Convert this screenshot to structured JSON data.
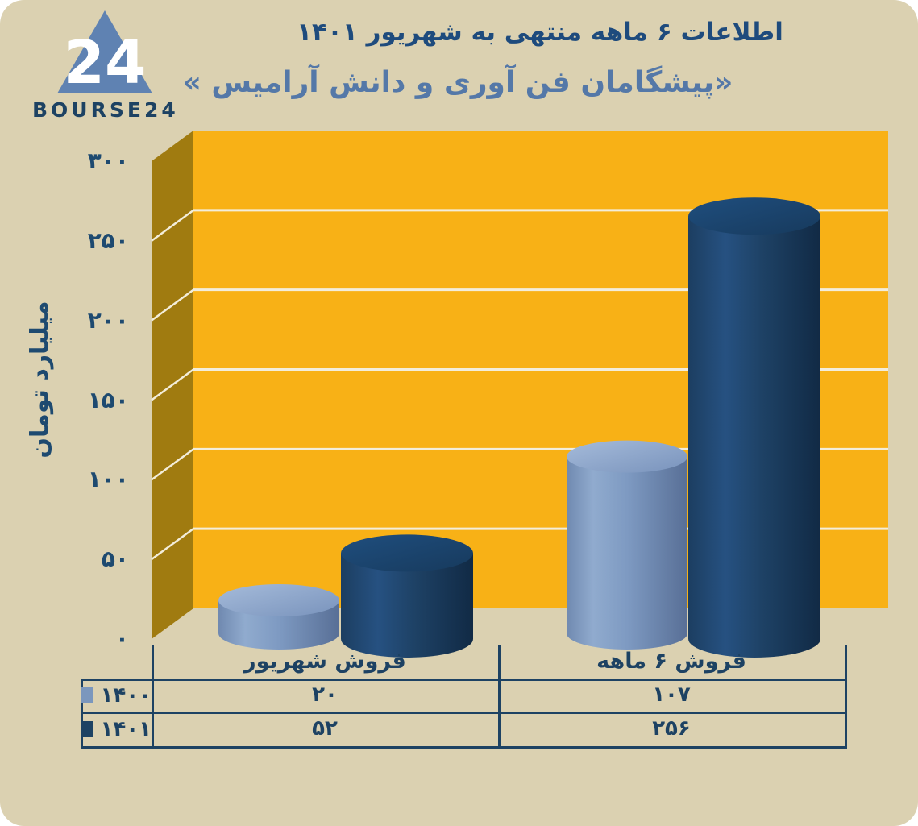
{
  "logo": {
    "text": "BOURSE24",
    "number": "24",
    "triangle_color": "#5f82b2"
  },
  "header": {
    "title": "اطلاعات ۶ ماهه منتهی به شهریور ۱۴۰۱",
    "subtitle": "«پیشگامان فن آوری و دانش آرامیس »"
  },
  "chart_data": {
    "type": "bar",
    "style": "3d-cylinder",
    "title": "اطلاعات ۶ ماهه منتهی به شهریور ۱۴۰۱",
    "subtitle": "«پیشگامان فن آوری و دانش آرامیس »",
    "ylabel": "میلیارد تومان",
    "ylim": [
      0,
      300
    ],
    "ytick_step": 50,
    "grid": true,
    "legend_position": "table-left",
    "categories": [
      "فروش شهریور",
      "فروش ۶ ماهه"
    ],
    "series": [
      {
        "name": "۱۴۰۰",
        "values": [
          20,
          107
        ],
        "values_fa": [
          "۲۰",
          "۱۰۷"
        ],
        "color": "#7b97bd"
      },
      {
        "name": "۱۴۰۱",
        "values": [
          52,
          256
        ],
        "values_fa": [
          "۵۲",
          "۲۵۶"
        ],
        "color": "#1d4263"
      }
    ],
    "yticks": [
      {
        "value": 300,
        "label": "۳۰۰"
      },
      {
        "value": 250,
        "label": "۲۵۰"
      },
      {
        "value": 200,
        "label": "۲۰۰"
      },
      {
        "value": 150,
        "label": "۱۵۰"
      },
      {
        "value": 100,
        "label": "۱۰۰"
      },
      {
        "value": 50,
        "label": "۵۰"
      },
      {
        "value": 0,
        "label": "۰"
      }
    ]
  },
  "colors": {
    "page_bg": "#dbd1b1",
    "outer_bg": "#ffffff",
    "wall_front": "#f8b116",
    "wall_side": "#a07b10",
    "gridline": "#f3edda",
    "navy": "#1d4263",
    "title": "#1e4b7d",
    "subtitle": "#5478a8",
    "series_light": "#7b97bd",
    "series_dark": "#1d4263"
  }
}
